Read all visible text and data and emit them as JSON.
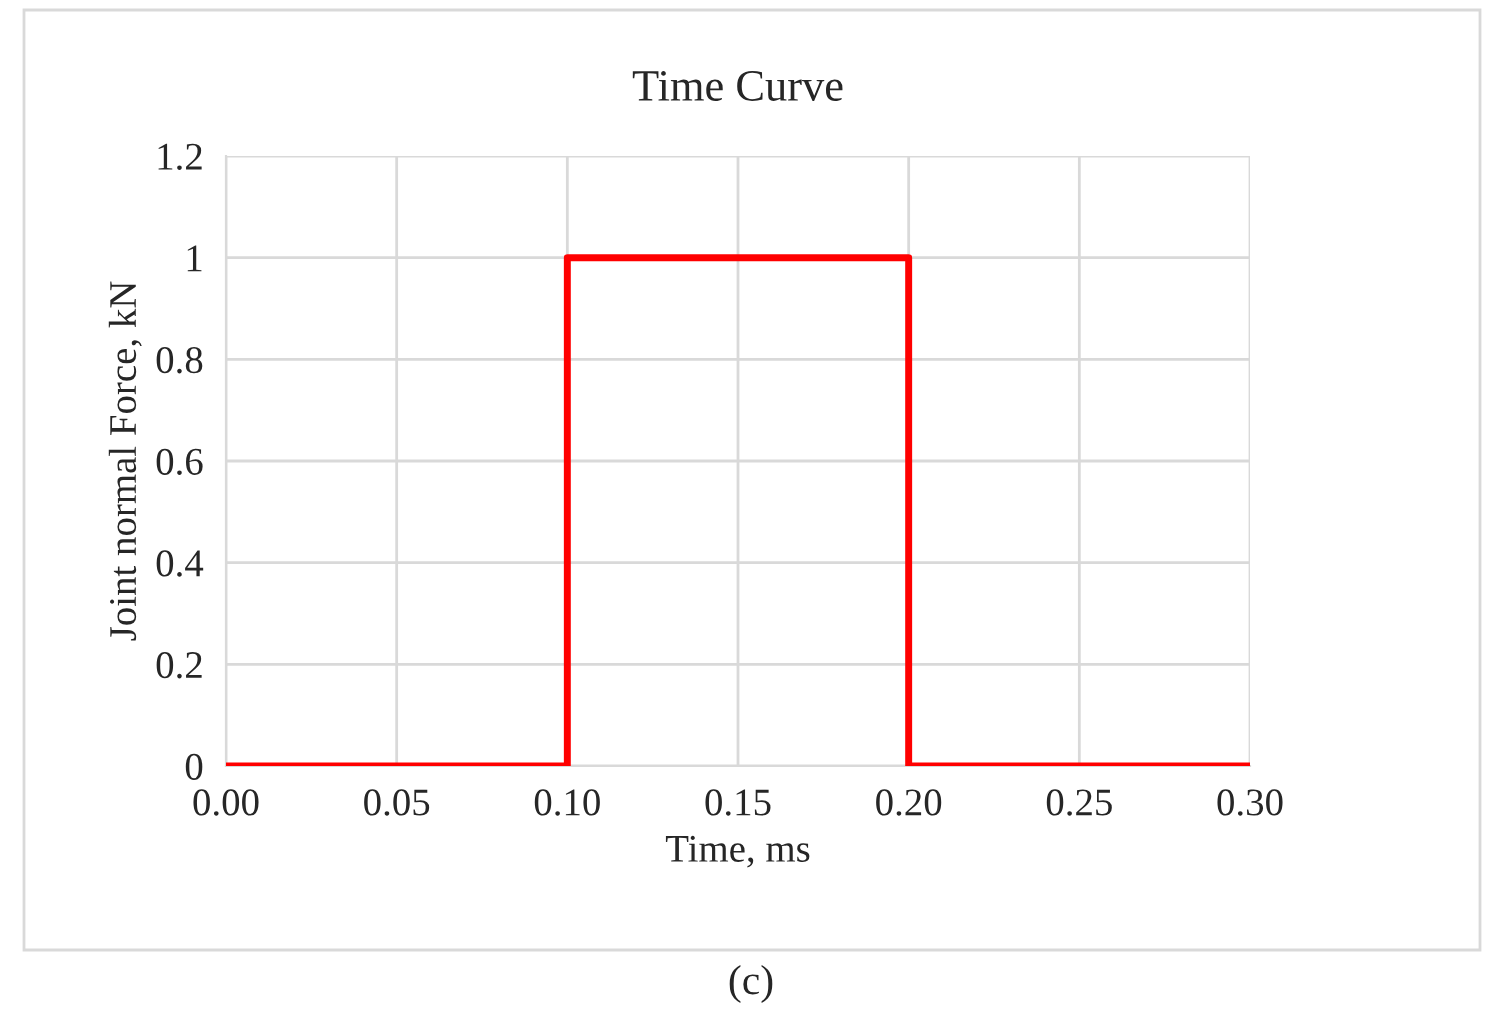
{
  "chart_data": {
    "type": "line",
    "title": "Time Curve",
    "xlabel": "Time, ms",
    "ylabel": "Joint normal Force, kN",
    "annotations": [
      "(c)"
    ],
    "series": [
      {
        "color": "#ff0000",
        "x": [
          0,
          0.1,
          0.1,
          0.2,
          0.2,
          0.3
        ],
        "values": [
          0,
          0,
          1,
          1,
          0,
          0
        ]
      }
    ],
    "xlim": [
      0,
      0.3
    ],
    "xticks": [
      {
        "value": 0,
        "label": "0.00"
      },
      {
        "value": 0.05,
        "label": "0.05"
      },
      {
        "value": 0.1,
        "label": "0.10"
      },
      {
        "value": 0.15,
        "label": "0.15"
      },
      {
        "value": 0.2,
        "label": "0.20"
      },
      {
        "value": 0.25,
        "label": "0.25"
      },
      {
        "value": 0.3,
        "label": "0.30"
      }
    ],
    "ylim": [
      0,
      1.2
    ],
    "yticks": [
      0,
      0.2,
      0.4,
      0.6,
      0.8,
      1,
      1.2
    ],
    "grid": true,
    "marker": "none",
    "line_style": "solid"
  }
}
